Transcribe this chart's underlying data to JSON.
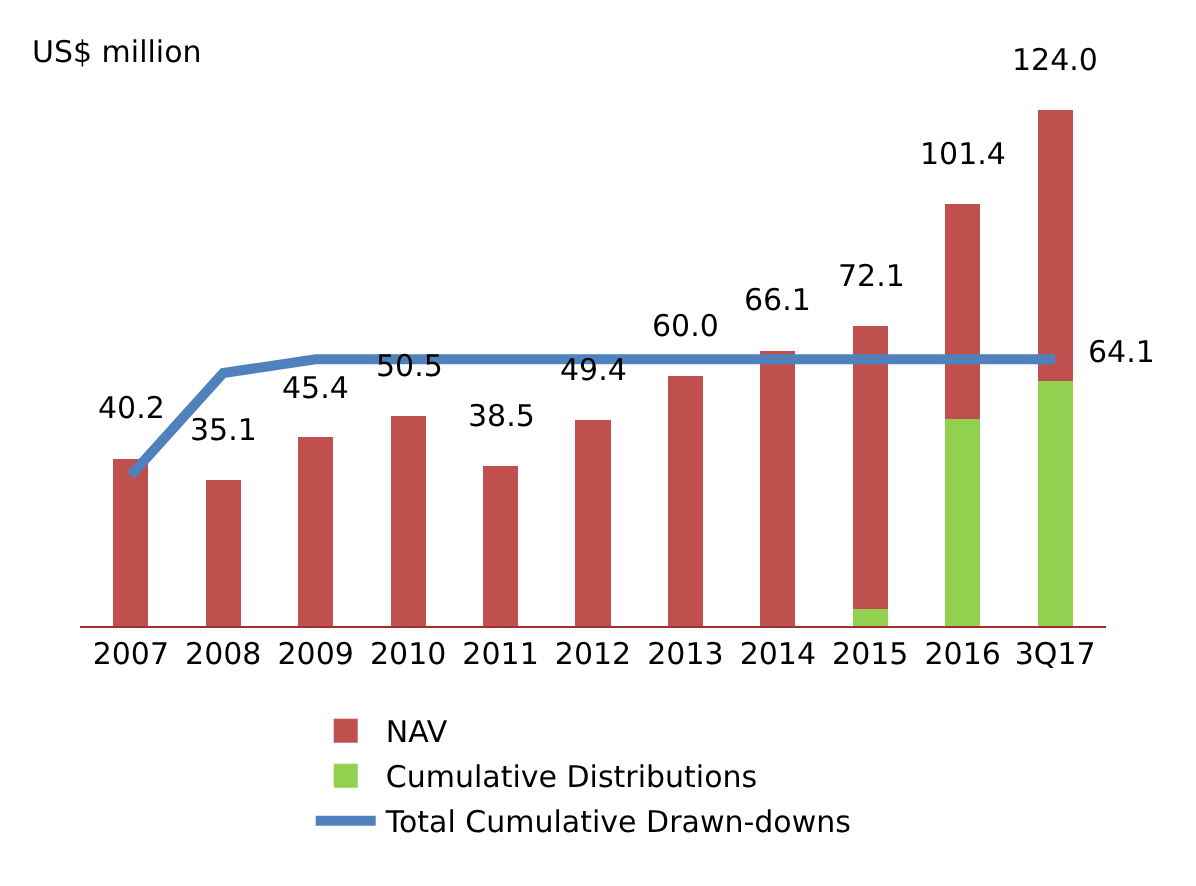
{
  "chart_data": {
    "type": "bar",
    "ylabel": "US$ million",
    "stacked": true,
    "legend": "bottom",
    "categories": [
      "2007",
      "2008",
      "2009",
      "2010",
      "2011",
      "2012",
      "2013",
      "2014",
      "2015",
      "2016",
      "3Q17"
    ],
    "series": [
      {
        "name": "Cumulative Distributions",
        "color": "#92d050",
        "values": [
          null,
          null,
          null,
          null,
          null,
          null,
          null,
          null,
          4.0,
          49.7,
          58.8
        ]
      },
      {
        "name": "NAV",
        "color": "#c0504d",
        "values": [
          40.2,
          35.1,
          45.4,
          50.5,
          38.5,
          49.4,
          60.0,
          66.1,
          68.1,
          51.7,
          65.2
        ]
      },
      {
        "name": "Total Cumulative Drawn-downs",
        "type": "line",
        "color": "#4f81bd",
        "marker": "none",
        "line_style": "solid",
        "values": [
          36.2,
          60.8,
          64.1,
          64.1,
          64.1,
          64.1,
          64.1,
          64.1,
          64.1,
          64.1,
          64.1
        ],
        "value_labels": [
          null,
          null,
          null,
          null,
          null,
          null,
          null,
          null,
          null,
          null,
          "64.1"
        ]
      }
    ],
    "totals": [
      "40.2",
      "35.1",
      "45.4",
      "50.5",
      "38.5",
      "49.4",
      "60.0",
      "66.1",
      "72.1",
      "101.4",
      "124.0"
    ],
    "ylim": [
      0,
      124.0
    ]
  }
}
